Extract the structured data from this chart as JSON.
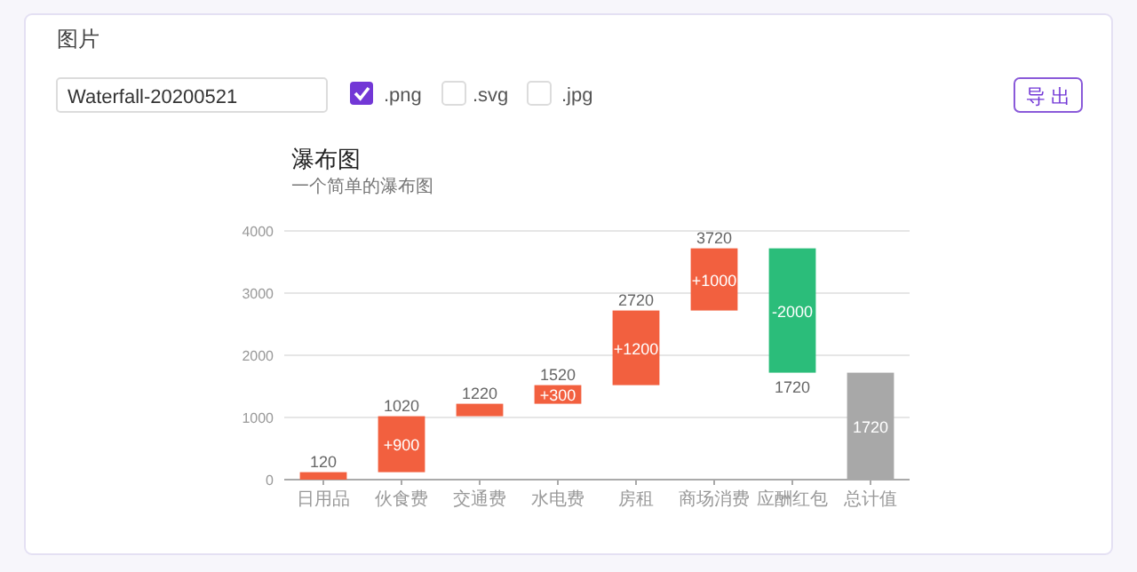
{
  "chart_data": [
    {
      "type": "other",
      "annotations": [
        "图片",
        "Waterfall-20200521",
        ".png",
        ".svg",
        ".jpg",
        "导 出"
      ]
    },
    {
      "type": "bar",
      "title": "瀑布图",
      "subtitle": "一个简单的瀑布图",
      "categories": [
        "日用品",
        "伙食费",
        "交通费",
        "水电费",
        "房租",
        "商场消费",
        "应酬红包",
        "总计值"
      ],
      "base": [
        0,
        120,
        1020,
        1220,
        1520,
        2720,
        3720,
        0
      ],
      "values": [
        120,
        900,
        200,
        300,
        1200,
        1000,
        -2000,
        1720
      ],
      "colors": [
        "#f2603f",
        "#f2603f",
        "#f2603f",
        "#f2603f",
        "#f2603f",
        "#f2603f",
        "#2bbd7a",
        "#a8a8a8"
      ],
      "value_labels": [
        null,
        "+900",
        null,
        "+300",
        "+1200",
        "+1000",
        "-2000",
        "1720"
      ],
      "annotations": [
        {
          "text": "120",
          "x": "日用品",
          "y": 120
        },
        {
          "text": "1020",
          "x": "伙食费",
          "y": 1020
        },
        {
          "text": "1220",
          "x": "交通费",
          "y": 1220
        },
        {
          "text": "1520",
          "x": "水电费",
          "y": 1520
        },
        {
          "text": "2720",
          "x": "房租",
          "y": 2720
        },
        {
          "text": "3720",
          "x": "商场消费",
          "y": 3720
        },
        {
          "text": "1720",
          "x": "应酬红包",
          "y": 1720
        }
      ],
      "ylim": [
        0,
        4000
      ],
      "yticks": [
        0,
        1000,
        2000,
        3000,
        4000
      ],
      "grid": "y"
    }
  ]
}
